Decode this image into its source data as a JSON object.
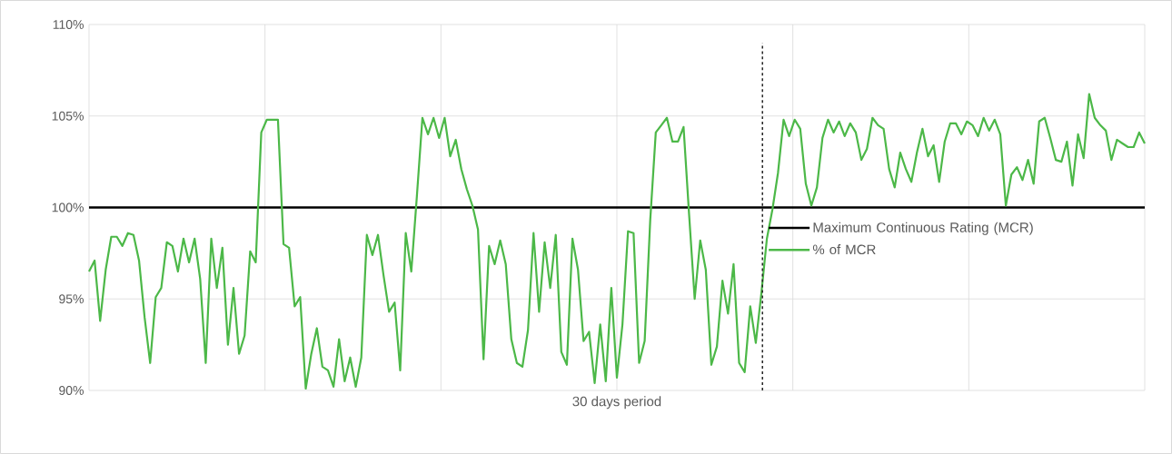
{
  "chart_data": {
    "type": "line",
    "xlabel": "30 days period",
    "categories": [
      null,
      null,
      null,
      null,
      null,
      null,
      null,
      null,
      null,
      null,
      null,
      null,
      null,
      null,
      null,
      null,
      null,
      null,
      null,
      null,
      null,
      null,
      null,
      null,
      null,
      null,
      null,
      null,
      null,
      null,
      null,
      null,
      null,
      null,
      null,
      null,
      null,
      null,
      null,
      null,
      null,
      null,
      null,
      null,
      null,
      null,
      null,
      null,
      null,
      null,
      null,
      null,
      null,
      null,
      null,
      null,
      null,
      null,
      null,
      null,
      null,
      null,
      null,
      null,
      null,
      null,
      null,
      null,
      null,
      null,
      null,
      null,
      null,
      null,
      null,
      null,
      null,
      null,
      null,
      null,
      null,
      null,
      null,
      null,
      null,
      null,
      null,
      null,
      null,
      null,
      null,
      null,
      null,
      null,
      null,
      null,
      null,
      null,
      null,
      null,
      null,
      null,
      null,
      null,
      null,
      null,
      null,
      null,
      null,
      null,
      null,
      null,
      null,
      null,
      null,
      null,
      null,
      null,
      null,
      null,
      null,
      null,
      null,
      null,
      null,
      null,
      null,
      null,
      null,
      null,
      null,
      null,
      null,
      null,
      null,
      null,
      null,
      null,
      null,
      null,
      null,
      null,
      null,
      null,
      null,
      null,
      null,
      null,
      null,
      null,
      null,
      null,
      null,
      null,
      null,
      null,
      null,
      null,
      null,
      null,
      null,
      null,
      null,
      null,
      null,
      null,
      null,
      null,
      null,
      null,
      null,
      null,
      null,
      null,
      null,
      null,
      null,
      null,
      null,
      null,
      null,
      null,
      null,
      null,
      null,
      null,
      null,
      null,
      null,
      null,
      null
    ],
    "ylim": [
      90,
      110
    ],
    "yticks": [
      {
        "value": 90,
        "label": "90%"
      },
      {
        "value": 95,
        "label": "95%"
      },
      {
        "value": 100,
        "label": "100%"
      },
      {
        "value": 105,
        "label": "105%"
      },
      {
        "value": 110,
        "label": "110%"
      }
    ],
    "grid": true,
    "legend": "right",
    "marker": "none",
    "line_style": "solid",
    "series": [
      {
        "name": "Maximum Continuous Rating (MCR)",
        "color": "#000000",
        "values": [
          100,
          100,
          100,
          100,
          100,
          100,
          100,
          100,
          100,
          100,
          100,
          100,
          100,
          100,
          100,
          100,
          100,
          100,
          100,
          100,
          100,
          100,
          100,
          100,
          100,
          100,
          100,
          100,
          100,
          100,
          100,
          100,
          100,
          100,
          100,
          100,
          100,
          100,
          100,
          100,
          100,
          100,
          100,
          100,
          100,
          100,
          100,
          100,
          100,
          100,
          100,
          100,
          100,
          100,
          100,
          100,
          100,
          100,
          100,
          100,
          100,
          100,
          100,
          100,
          100,
          100,
          100,
          100,
          100,
          100,
          100,
          100,
          100,
          100,
          100,
          100,
          100,
          100,
          100,
          100,
          100,
          100,
          100,
          100,
          100,
          100,
          100,
          100,
          100,
          100,
          100,
          100,
          100,
          100,
          100,
          100,
          100,
          100,
          100,
          100,
          100,
          100,
          100,
          100,
          100,
          100,
          100,
          100,
          100,
          100,
          100,
          100,
          100,
          100,
          100,
          100,
          100,
          100,
          100,
          100,
          100,
          100,
          100,
          100,
          100,
          100,
          100,
          100,
          100,
          100,
          100,
          100,
          100,
          100,
          100,
          100,
          100,
          100,
          100,
          100,
          100,
          100,
          100,
          100,
          100,
          100,
          100,
          100,
          100,
          100,
          100,
          100,
          100,
          100,
          100,
          100,
          100,
          100,
          100,
          100,
          100,
          100,
          100,
          100,
          100,
          100,
          100,
          100,
          100,
          100,
          100,
          100,
          100,
          100,
          100,
          100,
          100,
          100,
          100,
          100,
          100,
          100,
          100,
          100,
          100,
          100,
          100,
          100,
          100,
          100,
          100
        ]
      },
      {
        "name": "% of MCR",
        "color": "#4cb848",
        "values": [
          96.5,
          97.1,
          93.8,
          96.6,
          98.4,
          98.4,
          97.9,
          98.6,
          98.5,
          97.1,
          94.0,
          91.5,
          95.1,
          95.6,
          98.1,
          97.9,
          96.5,
          98.3,
          97.0,
          98.3,
          96.1,
          91.5,
          98.3,
          95.6,
          97.8,
          92.5,
          95.6,
          92.0,
          93.0,
          97.6,
          97.0,
          104.1,
          104.8,
          104.8,
          104.8,
          98.0,
          97.8,
          94.6,
          95.1,
          90.1,
          92.0,
          93.4,
          91.3,
          91.1,
          90.2,
          92.8,
          90.5,
          91.8,
          90.2,
          91.8,
          98.5,
          97.4,
          98.5,
          96.3,
          94.3,
          94.8,
          91.1,
          98.6,
          96.5,
          100.6,
          104.9,
          104.0,
          104.9,
          103.8,
          104.9,
          102.8,
          103.7,
          102.1,
          101.0,
          100.1,
          98.8,
          91.7,
          97.9,
          96.9,
          98.2,
          96.9,
          92.8,
          91.5,
          91.3,
          93.3,
          98.6,
          94.3,
          98.1,
          95.6,
          98.5,
          92.1,
          91.4,
          98.3,
          96.6,
          92.7,
          93.2,
          90.4,
          93.6,
          90.5,
          95.6,
          90.7,
          93.6,
          98.7,
          98.6,
          91.5,
          92.7,
          99.3,
          104.1,
          104.5,
          104.9,
          103.6,
          103.6,
          104.4,
          99.6,
          95.0,
          98.2,
          96.6,
          91.4,
          92.4,
          96.0,
          94.2,
          96.9,
          91.5,
          91.0,
          94.6,
          92.6,
          95.3,
          98.3,
          99.9,
          101.9,
          104.8,
          103.9,
          104.8,
          104.3,
          101.3,
          100.1,
          101.1,
          103.8,
          104.8,
          104.1,
          104.7,
          103.9,
          104.6,
          104.1,
          102.6,
          103.2,
          104.9,
          104.5,
          104.3,
          102.1,
          101.1,
          103.0,
          102.1,
          101.4,
          103.0,
          104.3,
          102.8,
          103.4,
          101.4,
          103.6,
          104.6,
          104.6,
          104.0,
          104.7,
          104.5,
          103.9,
          104.9,
          104.2,
          104.8,
          104.0,
          100.1,
          101.8,
          102.2,
          101.5,
          102.6,
          101.3,
          104.7,
          104.9,
          103.8,
          102.6,
          102.5,
          103.6,
          101.2,
          104.0,
          102.7,
          106.2,
          104.9,
          104.5,
          104.2,
          102.6,
          103.7,
          103.5,
          103.3,
          103.3,
          104.1,
          103.5
        ]
      }
    ]
  }
}
